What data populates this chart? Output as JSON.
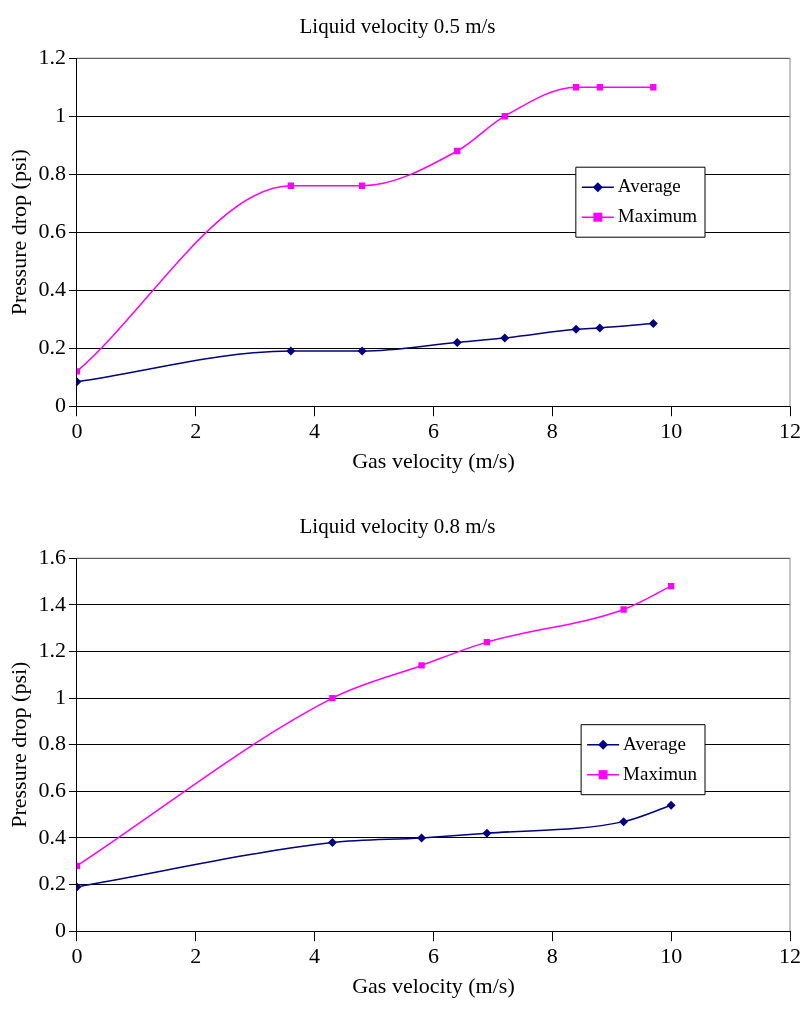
{
  "chart_data": [
    {
      "type": "line",
      "title": "Liquid velocity 0.5 m/s",
      "xlabel": "Gas velocity (m/s)",
      "ylabel": "Pressure drop (psi)",
      "xlim": [
        0,
        12
      ],
      "xticks": [
        0,
        2,
        4,
        6,
        8,
        10,
        12
      ],
      "ylim": [
        0,
        1.2
      ],
      "yticks": [
        0,
        0.2,
        0.4,
        0.6,
        0.8,
        1,
        1.2
      ],
      "grid": "y",
      "legend": "right",
      "series": [
        {
          "name": "Average",
          "color": "#000080",
          "marker": "diamond",
          "x": [
            0,
            3.6,
            4.8,
            6.4,
            7.2,
            8.4,
            8.8,
            9.7
          ],
          "values": [
            0.084,
            0.19,
            0.19,
            0.22,
            0.235,
            0.265,
            0.27,
            0.285
          ]
        },
        {
          "name": "Maximum",
          "color": "#ff00ff",
          "marker": "square",
          "x": [
            0,
            3.6,
            4.8,
            6.4,
            7.2,
            8.4,
            8.8,
            9.7
          ],
          "values": [
            0.12,
            0.76,
            0.76,
            0.88,
            1.0,
            1.1,
            1.1,
            1.1
          ]
        }
      ]
    },
    {
      "type": "line",
      "title": "Liquid velocity 0.8 m/s",
      "xlabel": "Gas velocity (m/s)",
      "ylabel": "Pressure drop (psi)",
      "xlim": [
        0,
        12
      ],
      "xticks": [
        0,
        2,
        4,
        6,
        8,
        10,
        12
      ],
      "ylim": [
        0,
        1.6
      ],
      "yticks": [
        0,
        0.2,
        0.4,
        0.6,
        0.8,
        1,
        1.2,
        1.4,
        1.6
      ],
      "grid": "y",
      "legend": "right",
      "series": [
        {
          "name": "Average",
          "color": "#000080",
          "marker": "diamond",
          "x": [
            0,
            4.3,
            5.8,
            6.9,
            9.2,
            10
          ],
          "values": [
            0.19,
            0.38,
            0.4,
            0.42,
            0.47,
            0.54
          ]
        },
        {
          "name": "Maximun",
          "color": "#ff00ff",
          "marker": "square",
          "x": [
            0,
            4.3,
            5.8,
            6.9,
            9.2,
            10
          ],
          "values": [
            0.28,
            1.0,
            1.14,
            1.24,
            1.38,
            1.48
          ]
        }
      ]
    }
  ]
}
